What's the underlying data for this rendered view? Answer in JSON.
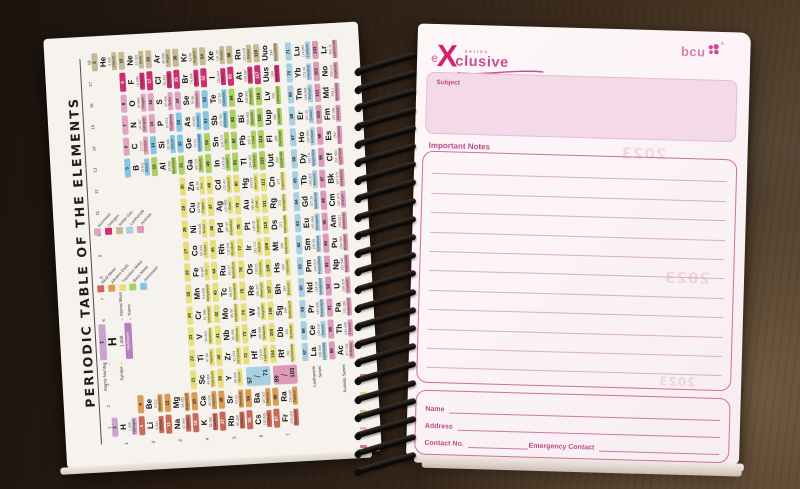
{
  "colors": {
    "pink_deep": "#d6216e",
    "pink_mid": "#cd4a90",
    "pink_soft": "#d97fae",
    "pink_label": "#b84d85",
    "box_border": "#cc6f9f",
    "rule_line": "#d9aec6",
    "subject_fill": "#f4d9e8"
  },
  "left_page": {
    "periodic_table": {
      "title": "PERIODIC TABLE OF THE ELEMENTS",
      "group_numbers": [
        "1",
        "2",
        "3",
        "4",
        "5",
        "6",
        "7",
        "8",
        "9",
        "10",
        "11",
        "12",
        "13",
        "14",
        "15",
        "16",
        "17",
        "18"
      ],
      "period_numbers": [
        "1",
        "2",
        "3",
        "4",
        "5",
        "6",
        "7"
      ],
      "series_labels": {
        "lanthanide": "Lanthanide Series",
        "actinide": "Actinide Series"
      },
      "key": {
        "atomic_number_label": "Atomic Number →",
        "symbol_label": "Symbol →",
        "mass_label": "← Atomic Mass",
        "name_label": "← Name",
        "example": {
          "number": "1",
          "symbol": "H",
          "mass": "1.008",
          "name": "Hydrogen"
        }
      },
      "category_colors": {
        "hyd": "#c9a2d0",
        "alk": "#c9695a",
        "ae": "#d89c52",
        "tm": "#e6e07c",
        "bm": "#aecf63",
        "sm": "#85c6e2",
        "nm": "#dfa4be",
        "hal": "#ce2e6e",
        "ng": "#c6ba92",
        "lan": "#a9cfe2",
        "act": "#dd9ab8"
      },
      "legend": {
        "columns": [
          [
            {
              "key": "alk",
              "label": "Alkali Metal"
            },
            {
              "key": "ae",
              "label": "Alkaline Earth"
            },
            {
              "key": "tm",
              "label": "Transition Metal"
            },
            {
              "key": "bm",
              "label": "Basic Metal"
            },
            {
              "key": "sm",
              "label": "Semimetal"
            }
          ],
          [
            {
              "key": "nm",
              "label": "Nonmetal"
            },
            {
              "key": "hal",
              "label": "Halogen"
            },
            {
              "key": "ng",
              "label": "Noble Gas"
            },
            {
              "key": "lan",
              "label": "Lanthanide"
            },
            {
              "key": "act",
              "label": "Actinide"
            }
          ]
        ]
      },
      "range_cells": [
        [
          "57",
          "71",
          "lan",
          6,
          3
        ],
        [
          "89",
          "103",
          "act",
          7,
          3
        ]
      ],
      "elements": [
        [
          "H",
          "Hydrogen",
          "1.008",
          1,
          1,
          1,
          "hyd"
        ],
        [
          "He",
          "Helium",
          "4.003",
          2,
          1,
          18,
          "ng"
        ],
        [
          "Li",
          "Lithium",
          "6.941",
          3,
          2,
          1,
          "alk"
        ],
        [
          "Be",
          "Beryllium",
          "9.012",
          4,
          2,
          2,
          "ae"
        ],
        [
          "B",
          "Boron",
          "10.811",
          5,
          2,
          13,
          "sm"
        ],
        [
          "C",
          "Carbon",
          "12.011",
          6,
          2,
          14,
          "nm"
        ],
        [
          "N",
          "Nitrogen",
          "14.007",
          7,
          2,
          15,
          "nm"
        ],
        [
          "O",
          "Oxygen",
          "15.999",
          8,
          2,
          16,
          "nm"
        ],
        [
          "F",
          "Fluorine",
          "18.998",
          9,
          2,
          17,
          "hal"
        ],
        [
          "Ne",
          "Neon",
          "20.180",
          10,
          2,
          18,
          "ng"
        ],
        [
          "Na",
          "Sodium",
          "22.990",
          11,
          3,
          1,
          "alk"
        ],
        [
          "Mg",
          "Magnesium",
          "24.305",
          12,
          3,
          2,
          "ae"
        ],
        [
          "Al",
          "Aluminium",
          "26.982",
          13,
          3,
          13,
          "bm"
        ],
        [
          "Si",
          "Silicon",
          "28.086",
          14,
          3,
          14,
          "sm"
        ],
        [
          "P",
          "Phosphorus",
          "30.974",
          15,
          3,
          15,
          "nm"
        ],
        [
          "S",
          "Sulfur",
          "32.066",
          16,
          3,
          16,
          "nm"
        ],
        [
          "Cl",
          "Chlorine",
          "35.453",
          17,
          3,
          17,
          "hal"
        ],
        [
          "Ar",
          "Argon",
          "39.948",
          18,
          3,
          18,
          "ng"
        ],
        [
          "K",
          "Potassium",
          "39.098",
          19,
          4,
          1,
          "alk"
        ],
        [
          "Ca",
          "Calcium",
          "40.078",
          20,
          4,
          2,
          "ae"
        ],
        [
          "Sc",
          "Scandium",
          "44.956",
          21,
          4,
          3,
          "tm"
        ],
        [
          "Ti",
          "Titanium",
          "47.88",
          22,
          4,
          4,
          "tm"
        ],
        [
          "V",
          "Vanadium",
          "50.942",
          23,
          4,
          5,
          "tm"
        ],
        [
          "Cr",
          "Chromium",
          "51.996",
          24,
          4,
          6,
          "tm"
        ],
        [
          "Mn",
          "Manganese",
          "54.938",
          25,
          4,
          7,
          "tm"
        ],
        [
          "Fe",
          "Iron",
          "55.845",
          26,
          4,
          8,
          "tm"
        ],
        [
          "Co",
          "Cobalt",
          "58.933",
          27,
          4,
          9,
          "tm"
        ],
        [
          "Ni",
          "Nickel",
          "58.693",
          28,
          4,
          10,
          "tm"
        ],
        [
          "Cu",
          "Copper",
          "63.546",
          29,
          4,
          11,
          "tm"
        ],
        [
          "Zn",
          "Zinc",
          "65.39",
          30,
          4,
          12,
          "tm"
        ],
        [
          "Ga",
          "Gallium",
          "69.723",
          31,
          4,
          13,
          "bm"
        ],
        [
          "Ge",
          "Germanium",
          "72.61",
          32,
          4,
          14,
          "sm"
        ],
        [
          "As",
          "Arsenic",
          "74.922",
          33,
          4,
          15,
          "sm"
        ],
        [
          "Se",
          "Selenium",
          "78.96",
          34,
          4,
          16,
          "nm"
        ],
        [
          "Br",
          "Bromine",
          "79.904",
          35,
          4,
          17,
          "hal"
        ],
        [
          "Kr",
          "Krypton",
          "83.80",
          36,
          4,
          18,
          "ng"
        ],
        [
          "Rb",
          "Rubidium",
          "85.468",
          37,
          5,
          1,
          "alk"
        ],
        [
          "Sr",
          "Strontium",
          "87.62",
          38,
          5,
          2,
          "ae"
        ],
        [
          "Y",
          "Yttrium",
          "88.906",
          39,
          5,
          3,
          "tm"
        ],
        [
          "Zr",
          "Zirconium",
          "91.224",
          40,
          5,
          4,
          "tm"
        ],
        [
          "Nb",
          "Niobium",
          "92.906",
          41,
          5,
          5,
          "tm"
        ],
        [
          "Mo",
          "Molybdenum",
          "95.94",
          42,
          5,
          6,
          "tm"
        ],
        [
          "Tc",
          "Technetium",
          "98.907",
          43,
          5,
          7,
          "tm"
        ],
        [
          "Ru",
          "Ruthenium",
          "101.07",
          44,
          5,
          8,
          "tm"
        ],
        [
          "Rh",
          "Rhodium",
          "102.906",
          45,
          5,
          9,
          "tm"
        ],
        [
          "Pd",
          "Palladium",
          "106.42",
          46,
          5,
          10,
          "tm"
        ],
        [
          "Ag",
          "Silver",
          "107.868",
          47,
          5,
          11,
          "tm"
        ],
        [
          "Cd",
          "Cadmium",
          "112.411",
          48,
          5,
          12,
          "tm"
        ],
        [
          "In",
          "Indium",
          "114.818",
          49,
          5,
          13,
          "bm"
        ],
        [
          "Sn",
          "Tin",
          "118.710",
          50,
          5,
          14,
          "bm"
        ],
        [
          "Sb",
          "Antimony",
          "121.760",
          51,
          5,
          15,
          "sm"
        ],
        [
          "Te",
          "Tellurium",
          "127.60",
          52,
          5,
          16,
          "sm"
        ],
        [
          "I",
          "Iodine",
          "126.904",
          53,
          5,
          17,
          "hal"
        ],
        [
          "Xe",
          "Xenon",
          "131.29",
          54,
          5,
          18,
          "ng"
        ],
        [
          "Cs",
          "Cesium",
          "132.905",
          55,
          6,
          1,
          "alk"
        ],
        [
          "Ba",
          "Barium",
          "137.327",
          56,
          6,
          2,
          "ae"
        ],
        [
          "Hf",
          "Hafnium",
          "178.49",
          72,
          6,
          4,
          "tm"
        ],
        [
          "Ta",
          "Tantalum",
          "180.948",
          73,
          6,
          5,
          "tm"
        ],
        [
          "W",
          "Tungsten",
          "183.84",
          74,
          6,
          6,
          "tm"
        ],
        [
          "Re",
          "Rhenium",
          "186.207",
          75,
          6,
          7,
          "tm"
        ],
        [
          "Os",
          "Osmium",
          "190.23",
          76,
          6,
          8,
          "tm"
        ],
        [
          "Ir",
          "Iridium",
          "192.217",
          77,
          6,
          9,
          "tm"
        ],
        [
          "Pt",
          "Platinum",
          "195.08",
          78,
          6,
          10,
          "tm"
        ],
        [
          "Au",
          "Gold",
          "196.967",
          79,
          6,
          11,
          "tm"
        ],
        [
          "Hg",
          "Mercury",
          "200.59",
          80,
          6,
          12,
          "tm"
        ],
        [
          "Tl",
          "Thallium",
          "204.383",
          81,
          6,
          13,
          "bm"
        ],
        [
          "Pb",
          "Lead",
          "207.2",
          82,
          6,
          14,
          "bm"
        ],
        [
          "Bi",
          "Bismuth",
          "208.980",
          83,
          6,
          15,
          "bm"
        ],
        [
          "Po",
          "Polonium",
          "208.982",
          84,
          6,
          16,
          "bm"
        ],
        [
          "At",
          "Astatine",
          "209.987",
          85,
          6,
          17,
          "hal"
        ],
        [
          "Rn",
          "Radon",
          "222.018",
          86,
          6,
          18,
          "ng"
        ],
        [
          "Fr",
          "Francium",
          "223.020",
          87,
          7,
          1,
          "alk"
        ],
        [
          "Ra",
          "Radium",
          "226.025",
          88,
          7,
          2,
          "ae"
        ],
        [
          "Rf",
          "Rutherfordium",
          "261",
          104,
          7,
          4,
          "tm"
        ],
        [
          "Db",
          "Dubnium",
          "262",
          105,
          7,
          5,
          "tm"
        ],
        [
          "Sg",
          "Seaborgium",
          "266",
          106,
          7,
          6,
          "tm"
        ],
        [
          "Bh",
          "Bohrium",
          "264",
          107,
          7,
          7,
          "tm"
        ],
        [
          "Hs",
          "Hassium",
          "269",
          108,
          7,
          8,
          "tm"
        ],
        [
          "Mt",
          "Meitnerium",
          "268",
          109,
          7,
          9,
          "tm"
        ],
        [
          "Ds",
          "Darmstadtium",
          "271",
          110,
          7,
          10,
          "tm"
        ],
        [
          "Rg",
          "Roentgenium",
          "272",
          111,
          7,
          11,
          "tm"
        ],
        [
          "Cn",
          "Copernicium",
          "277",
          112,
          7,
          12,
          "tm"
        ],
        [
          "Uut",
          "Ununtrium",
          "284",
          113,
          7,
          13,
          "bm"
        ],
        [
          "Fl",
          "Flerovium",
          "289",
          114,
          7,
          14,
          "bm"
        ],
        [
          "Uup",
          "Ununpentium",
          "288",
          115,
          7,
          15,
          "bm"
        ],
        [
          "Lv",
          "Livermorium",
          "292",
          116,
          7,
          16,
          "bm"
        ],
        [
          "Uus",
          "Ununseptium",
          "294",
          117,
          7,
          17,
          "hal"
        ],
        [
          "Uuo",
          "Ununoctium",
          "294",
          118,
          7,
          18,
          "ng"
        ],
        [
          "La",
          "Lanthanum",
          "138.906",
          57,
          8,
          4,
          "lan"
        ],
        [
          "Ce",
          "Cerium",
          "140.115",
          58,
          8,
          5,
          "lan"
        ],
        [
          "Pr",
          "Praseodymium",
          "140.908",
          59,
          8,
          6,
          "lan"
        ],
        [
          "Nd",
          "Neodymium",
          "144.24",
          60,
          8,
          7,
          "lan"
        ],
        [
          "Pm",
          "Promethium",
          "144.913",
          61,
          8,
          8,
          "lan"
        ],
        [
          "Sm",
          "Samarium",
          "150.36",
          62,
          8,
          9,
          "lan"
        ],
        [
          "Eu",
          "Europium",
          "151.966",
          63,
          8,
          10,
          "lan"
        ],
        [
          "Gd",
          "Gadolinium",
          "157.25",
          64,
          8,
          11,
          "lan"
        ],
        [
          "Tb",
          "Terbium",
          "158.925",
          65,
          8,
          12,
          "lan"
        ],
        [
          "Dy",
          "Dysprosium",
          "162.50",
          66,
          8,
          13,
          "lan"
        ],
        [
          "Ho",
          "Holmium",
          "164.930",
          67,
          8,
          14,
          "lan"
        ],
        [
          "Er",
          "Erbium",
          "167.26",
          68,
          8,
          15,
          "lan"
        ],
        [
          "Tm",
          "Thulium",
          "168.934",
          69,
          8,
          16,
          "lan"
        ],
        [
          "Yb",
          "Ytterbium",
          "173.04",
          70,
          8,
          17,
          "lan"
        ],
        [
          "Lu",
          "Lutetium",
          "174.967",
          71,
          8,
          18,
          "lan"
        ],
        [
          "Ac",
          "Actinium",
          "227.028",
          89,
          9,
          4,
          "act"
        ],
        [
          "Th",
          "Thorium",
          "232.038",
          90,
          9,
          5,
          "act"
        ],
        [
          "Pa",
          "Protactinium",
          "231.036",
          91,
          9,
          6,
          "act"
        ],
        [
          "U",
          "Uranium",
          "238.029",
          92,
          9,
          7,
          "act"
        ],
        [
          "Np",
          "Neptunium",
          "237.048",
          93,
          9,
          8,
          "act"
        ],
        [
          "Pu",
          "Plutonium",
          "244.064",
          94,
          9,
          9,
          "act"
        ],
        [
          "Am",
          "Americium",
          "243.061",
          95,
          9,
          10,
          "act"
        ],
        [
          "Cm",
          "Curium",
          "247.070",
          96,
          9,
          11,
          "act"
        ],
        [
          "Bk",
          "Berkelium",
          "247.070",
          97,
          9,
          12,
          "act"
        ],
        [
          "Cf",
          "Californium",
          "251.080",
          98,
          9,
          13,
          "act"
        ],
        [
          "Es",
          "Einsteinium",
          "254",
          99,
          9,
          14,
          "act"
        ],
        [
          "Fm",
          "Fermium",
          "257.095",
          100,
          9,
          15,
          "act"
        ],
        [
          "Md",
          "Mendelevium",
          "258.1",
          101,
          9,
          16,
          "act"
        ],
        [
          "No",
          "Nobelium",
          "259.101",
          102,
          9,
          17,
          "act"
        ],
        [
          "Lr",
          "Lawrencium",
          "262.11",
          103,
          9,
          18,
          "act"
        ]
      ]
    }
  },
  "right_page": {
    "brand": {
      "e": "e",
      "x": "X",
      "series": "series",
      "clusive": "clusive",
      "company": "bcu",
      "registered": "®"
    },
    "subject_label": "Subject",
    "watermark": "2023",
    "important_notes_label": "Important Notes",
    "notes_line_count": 12,
    "contact": {
      "name_label": "Name",
      "address_label": "Address",
      "contact_no_label": "Contact No.",
      "emergency_label": "Emergency Contact"
    }
  },
  "spiral": {
    "coil_count": 23,
    "edge_mark_count": 14,
    "edge_mark_colors": [
      "#e4a7c3",
      "#cf5d7e",
      "#e6cf6d",
      "#a8cf6b"
    ]
  }
}
